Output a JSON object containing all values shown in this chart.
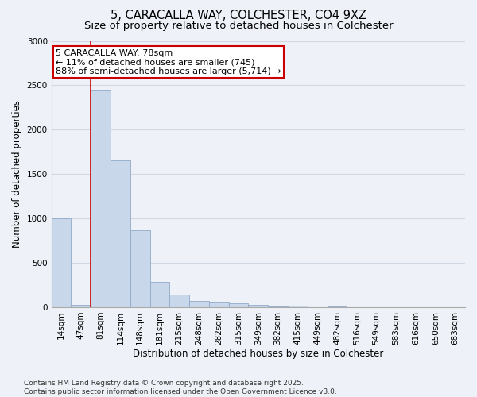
{
  "title_line1": "5, CARACALLA WAY, COLCHESTER, CO4 9XZ",
  "title_line2": "Size of property relative to detached houses in Colchester",
  "xlabel": "Distribution of detached houses by size in Colchester",
  "ylabel": "Number of detached properties",
  "categories": [
    "14sqm",
    "47sqm",
    "81sqm",
    "114sqm",
    "148sqm",
    "181sqm",
    "215sqm",
    "248sqm",
    "282sqm",
    "315sqm",
    "349sqm",
    "382sqm",
    "415sqm",
    "449sqm",
    "482sqm",
    "516sqm",
    "549sqm",
    "583sqm",
    "616sqm",
    "650sqm",
    "683sqm"
  ],
  "values": [
    1000,
    30,
    2450,
    1650,
    870,
    290,
    140,
    70,
    60,
    40,
    30,
    10,
    20,
    0,
    5,
    0,
    0,
    0,
    0,
    0,
    0
  ],
  "bar_color": "#c8d8ea",
  "bar_edge_color": "#90aac8",
  "red_line_x": 1.5,
  "annotation_text": "5 CARACALLA WAY: 78sqm\n← 11% of detached houses are smaller (745)\n88% of semi-detached houses are larger (5,714) →",
  "annotation_box_color": "#ffffff",
  "annotation_edge_color": "#cc0000",
  "red_line_color": "#cc0000",
  "ylim": [
    0,
    3000
  ],
  "yticks": [
    0,
    500,
    1000,
    1500,
    2000,
    2500,
    3000
  ],
  "grid_color": "#d0d8e4",
  "background_color": "#eef2f8",
  "footer_text": "Contains HM Land Registry data © Crown copyright and database right 2025.\nContains public sector information licensed under the Open Government Licence v3.0.",
  "title_fontsize": 10.5,
  "subtitle_fontsize": 9.5,
  "axis_label_fontsize": 8.5,
  "tick_fontsize": 7.5,
  "annotation_fontsize": 8,
  "footer_fontsize": 6.5
}
